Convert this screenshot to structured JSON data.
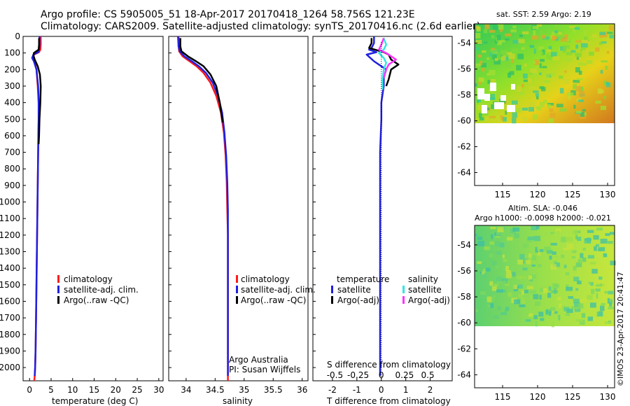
{
  "header": {
    "title_line1": "Argo profile: CS 5905005_51 18-Apr-2017 20170418_1264 58.756S 121.23E",
    "title_line2": "Climatology: CARS2009. Satellite-adjusted climatology: synTS_20170416.nc (2.6d earlier)"
  },
  "colors": {
    "climatology": "#ff1a1a",
    "satellite": "#1f1fe0",
    "argo": "#000000",
    "sal_satellite": "#33e5e5",
    "sal_argo": "#ff33ff"
  },
  "chart_data": [
    {
      "type": "line",
      "id": "temperature",
      "xlabel": "temperature (deg C)",
      "ylabel": "",
      "xlim": [
        -1.5,
        31
      ],
      "ylim": [
        2080,
        0
      ],
      "xticks": [
        0,
        5,
        10,
        15,
        20,
        25,
        30
      ],
      "yticks": [
        0,
        100,
        200,
        300,
        400,
        500,
        600,
        700,
        800,
        900,
        1000,
        1100,
        1200,
        1300,
        1400,
        1500,
        1600,
        1700,
        1800,
        1900,
        2000
      ],
      "legend": [
        "climatology",
        "satellite-adj. clim.",
        "Argo(..raw -QC)"
      ],
      "series": [
        {
          "name": "climatology",
          "color": "#ff1a1a",
          "x": [
            2.6,
            2.6,
            2.5,
            2.2,
            1.0,
            0.8,
            1.1,
            1.6,
            1.9,
            2.1,
            2.1,
            2.0,
            1.9,
            1.8,
            1.7,
            1.6,
            1.5,
            1.4,
            1.3,
            1.2,
            1.1
          ],
          "y": [
            0,
            50,
            80,
            95,
            110,
            130,
            150,
            200,
            300,
            400,
            500,
            700,
            900,
            1100,
            1300,
            1500,
            1700,
            1900,
            2000,
            2050,
            2080
          ]
        },
        {
          "name": "satellite-adj. clim.",
          "color": "#1f1fe0",
          "x": [
            2.3,
            2.3,
            2.2,
            2.0,
            0.9,
            0.6,
            1.0,
            1.6,
            2.0,
            2.1,
            2.1,
            2.0,
            1.9,
            1.8,
            1.7,
            1.6,
            1.5,
            1.4,
            1.3,
            1.2
          ],
          "y": [
            0,
            50,
            80,
            95,
            110,
            130,
            150,
            200,
            300,
            400,
            500,
            700,
            900,
            1100,
            1300,
            1500,
            1700,
            1900,
            2000,
            2050
          ]
        },
        {
          "name": "Argo(..raw -QC)",
          "color": "#000000",
          "x": [
            2.2,
            2.2,
            2.1,
            1.0,
            0.9,
            1.2,
            1.9,
            2.4,
            2.6,
            2.5,
            2.3,
            2.2,
            2.1
          ],
          "y": [
            10,
            50,
            80,
            100,
            115,
            140,
            180,
            230,
            300,
            400,
            500,
            600,
            650
          ]
        }
      ]
    },
    {
      "type": "line",
      "id": "salinity",
      "xlabel": "salinity",
      "ylabel": "",
      "xlim": [
        33.7,
        36.1
      ],
      "ylim": [
        2080,
        0
      ],
      "xticks": [
        34,
        34.5,
        35,
        35.5,
        36
      ],
      "legend": [
        "climatology",
        "satellite-adj. clim.",
        "Argo(..raw -QC)"
      ],
      "note1": "Argo Australia",
      "note2": "PI: Susan Wijffels",
      "series": [
        {
          "name": "climatology",
          "color": "#ff1a1a",
          "x": [
            33.87,
            33.87,
            33.88,
            33.94,
            34.06,
            34.18,
            34.3,
            34.42,
            34.52,
            34.6,
            34.65,
            34.68,
            34.7,
            34.71,
            34.72,
            34.72,
            34.72,
            34.72,
            34.72,
            34.72,
            34.72,
            34.72
          ],
          "y": [
            0,
            60,
            90,
            120,
            150,
            180,
            220,
            280,
            360,
            460,
            580,
            720,
            880,
            1050,
            1200,
            1400,
            1600,
            1800,
            1900,
            2000,
            2050,
            2080
          ]
        },
        {
          "name": "satellite-adj. clim.",
          "color": "#1f1fe0",
          "x": [
            33.86,
            33.87,
            33.89,
            33.97,
            34.1,
            34.22,
            34.34,
            34.46,
            34.55,
            34.62,
            34.66,
            34.69,
            34.71,
            34.72,
            34.72,
            34.72,
            34.72,
            34.72,
            34.72,
            34.72,
            34.72
          ],
          "y": [
            0,
            60,
            90,
            120,
            150,
            180,
            220,
            280,
            360,
            460,
            580,
            720,
            880,
            1050,
            1200,
            1400,
            1600,
            1800,
            1900,
            2000,
            2050
          ]
        },
        {
          "name": "Argo(..raw -QC)",
          "color": "#000000",
          "x": [
            33.9,
            33.9,
            33.92,
            34.03,
            34.17,
            34.3,
            34.42,
            34.52,
            34.58,
            34.63
          ],
          "y": [
            10,
            60,
            90,
            120,
            150,
            180,
            230,
            300,
            400,
            520
          ]
        }
      ]
    },
    {
      "type": "line",
      "id": "difference",
      "xlabel": "T difference from climatology",
      "xlabel2": "S difference from climatology",
      "ylabel": "",
      "xlim": [
        -2.8,
        2.9
      ],
      "ylim": [
        2080,
        0
      ],
      "xticks": [
        -2,
        -1,
        0,
        1,
        2
      ],
      "xticks_top": [
        "-0.5",
        "-0.25",
        "0",
        "0.25",
        "0.5"
      ],
      "legend_temperature": [
        "temperature",
        "satellite",
        "Argo(-adj)"
      ],
      "legend_salinity": [
        "salinity",
        "satellite",
        "Argo(-adj)"
      ],
      "series": [
        {
          "name": "satellite",
          "color": "#1f1fe0",
          "x": [
            -0.3,
            -0.3,
            -0.4,
            -0.5,
            -0.2,
            -0.6,
            -0.3,
            0.2,
            0.1,
            0.1,
            0.0,
            0.0,
            -0.05,
            -0.05,
            -0.05,
            -0.05,
            -0.05,
            -0.05,
            -0.05,
            -0.05
          ],
          "y": [
            0,
            40,
            70,
            80,
            95,
            110,
            150,
            200,
            250,
            300,
            400,
            500,
            700,
            900,
            1100,
            1300,
            1500,
            1700,
            1900,
            2050
          ]
        },
        {
          "name": "Argo(-adj)",
          "color": "#000000",
          "x": [
            -0.4,
            -0.4,
            -0.5,
            0.1,
            0.3,
            0.4,
            0.7,
            0.4,
            0.3,
            0.2
          ],
          "y": [
            10,
            40,
            70,
            95,
            110,
            140,
            170,
            200,
            260,
            300
          ]
        },
        {
          "name": "satellite",
          "color": "#33e5e5",
          "x": [
            0.1,
            0.2,
            0.1,
            -0.1,
            0.1,
            0.2,
            0.1,
            0.05,
            0.05
          ],
          "y": [
            10,
            50,
            80,
            100,
            130,
            160,
            200,
            260,
            320
          ]
        },
        {
          "name": "Argo(-adj)",
          "color": "#ff33ff",
          "x": [
            0.1,
            0.0,
            -0.1,
            0.2,
            0.6,
            0.3,
            0.2,
            0.1
          ],
          "y": [
            10,
            50,
            80,
            100,
            140,
            170,
            200,
            250
          ]
        }
      ]
    },
    {
      "type": "heatmap",
      "id": "sst_map",
      "title": "sat. SST: 2.59 Argo: 2.19",
      "xlim": [
        111,
        131
      ],
      "ylim": [
        -65,
        -52.5
      ],
      "xticks": [
        115,
        120,
        125,
        130
      ],
      "yticks": [
        -54,
        -56,
        -58,
        -60,
        -62,
        -64
      ]
    },
    {
      "type": "heatmap",
      "id": "sla_map",
      "title": "Altim. SLA: -0.046",
      "subtitle": "Argo h1000: -0.0098 h2000: -0.021",
      "xlim": [
        111,
        131
      ],
      "ylim": [
        -65,
        -52.5
      ],
      "xticks": [
        115,
        120,
        125,
        130
      ],
      "yticks": [
        -54,
        -56,
        -58,
        -60,
        -62,
        -64
      ]
    }
  ],
  "credit": "©IMOS 23-Apr-2017 20:41:47"
}
